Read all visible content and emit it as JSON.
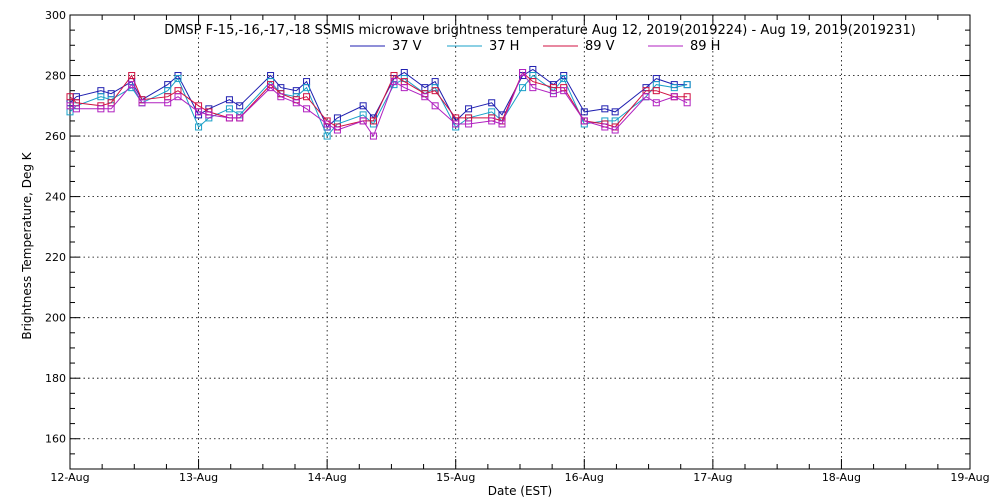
{
  "chart_data": {
    "type": "line",
    "title": "DMSP F-15,-16,-17,-18 SSMIS microwave brightness temperature Aug 12, 2019(2019224) - Aug 19, 2019(2019231)",
    "xlabel": "Date (EST)",
    "ylabel": "Brightness Temperature, Deg K",
    "ylim": [
      150,
      300
    ],
    "xlim": [
      0,
      7
    ],
    "y_ticks": [
      160,
      180,
      200,
      220,
      240,
      260,
      280,
      300
    ],
    "x_ticks": [
      {
        "v": 0,
        "label": "12-Aug"
      },
      {
        "v": 1,
        "label": "13-Aug"
      },
      {
        "v": 2,
        "label": "14-Aug"
      },
      {
        "v": 3,
        "label": "15-Aug"
      },
      {
        "v": 4,
        "label": "16-Aug"
      },
      {
        "v": 5,
        "label": "17-Aug"
      },
      {
        "v": 6,
        "label": "18-Aug"
      },
      {
        "v": 7,
        "label": "19-Aug"
      }
    ],
    "grid": true,
    "legend_position": "top-center",
    "series": [
      {
        "name": "37 V",
        "color": "#1f1fb0",
        "x": [
          0.0,
          0.05,
          0.24,
          0.32,
          0.48,
          0.56,
          0.76,
          0.84,
          1.0,
          1.08,
          1.24,
          1.32,
          1.56,
          1.64,
          1.76,
          1.84,
          2.0,
          2.08,
          2.28,
          2.36,
          2.52,
          2.6,
          2.76,
          2.84,
          3.0,
          3.1,
          3.28,
          3.36,
          3.52,
          3.6,
          3.76,
          3.84,
          4.0,
          4.16,
          4.24,
          4.48,
          4.56,
          4.7,
          4.8
        ],
        "y": [
          271,
          273,
          275,
          274,
          278,
          272,
          277,
          280,
          267,
          269,
          272,
          270,
          280,
          276,
          275,
          278,
          263,
          266,
          270,
          266,
          279,
          281,
          276,
          278,
          265,
          269,
          271,
          267,
          280,
          282,
          277,
          280,
          268,
          269,
          268,
          276,
          279,
          277,
          277
        ]
      },
      {
        "name": "37 H",
        "color": "#1aa0c8",
        "x": [
          0.0,
          0.05,
          0.24,
          0.32,
          0.48,
          0.56,
          0.76,
          0.84,
          1.0,
          1.08,
          1.24,
          1.32,
          1.56,
          1.64,
          1.76,
          1.84,
          2.0,
          2.08,
          2.28,
          2.36,
          2.52,
          2.6,
          2.76,
          2.84,
          3.0,
          3.1,
          3.28,
          3.36,
          3.52,
          3.6,
          3.76,
          3.84,
          4.0,
          4.16,
          4.24,
          4.48,
          4.56,
          4.7,
          4.8
        ],
        "y": [
          268,
          270,
          273,
          272,
          276,
          271,
          275,
          279,
          263,
          266,
          269,
          267,
          278,
          274,
          273,
          276,
          260,
          264,
          267,
          264,
          277,
          279,
          274,
          276,
          263,
          266,
          268,
          265,
          276,
          280,
          275,
          279,
          264,
          265,
          265,
          273,
          277,
          276,
          277
        ]
      },
      {
        "name": "89 V",
        "color": "#d01040",
        "x": [
          0.0,
          0.05,
          0.24,
          0.32,
          0.48,
          0.56,
          0.76,
          0.84,
          1.0,
          1.08,
          1.24,
          1.32,
          1.56,
          1.64,
          1.76,
          1.84,
          2.0,
          2.08,
          2.28,
          2.36,
          2.52,
          2.6,
          2.76,
          2.84,
          3.0,
          3.1,
          3.28,
          3.36,
          3.52,
          3.6,
          3.76,
          3.84,
          4.0,
          4.16,
          4.24,
          4.48,
          4.56,
          4.7,
          4.8
        ],
        "y": [
          273,
          271,
          270,
          271,
          280,
          272,
          273,
          275,
          270,
          268,
          266,
          266,
          277,
          274,
          272,
          273,
          265,
          263,
          265,
          265,
          280,
          278,
          274,
          275,
          266,
          266,
          266,
          265,
          281,
          278,
          276,
          276,
          265,
          264,
          263,
          275,
          275,
          273,
          273
        ]
      },
      {
        "name": "89 H",
        "color": "#b020c0",
        "x": [
          0.0,
          0.05,
          0.24,
          0.32,
          0.48,
          0.56,
          0.76,
          0.84,
          1.0,
          1.08,
          1.24,
          1.32,
          1.56,
          1.64,
          1.76,
          1.84,
          2.0,
          2.08,
          2.28,
          2.36,
          2.52,
          2.6,
          2.76,
          2.84,
          3.0,
          3.1,
          3.28,
          3.36,
          3.52,
          3.6,
          3.76,
          3.84,
          4.0,
          4.16,
          4.24,
          4.48,
          4.56,
          4.7,
          4.8
        ],
        "y": [
          270,
          269,
          269,
          269,
          277,
          271,
          271,
          273,
          268,
          267,
          266,
          266,
          276,
          273,
          271,
          269,
          264,
          262,
          265,
          260,
          278,
          276,
          273,
          270,
          264,
          264,
          265,
          264,
          281,
          276,
          274,
          275,
          265,
          263,
          262,
          273,
          271,
          273,
          271
        ]
      }
    ]
  }
}
